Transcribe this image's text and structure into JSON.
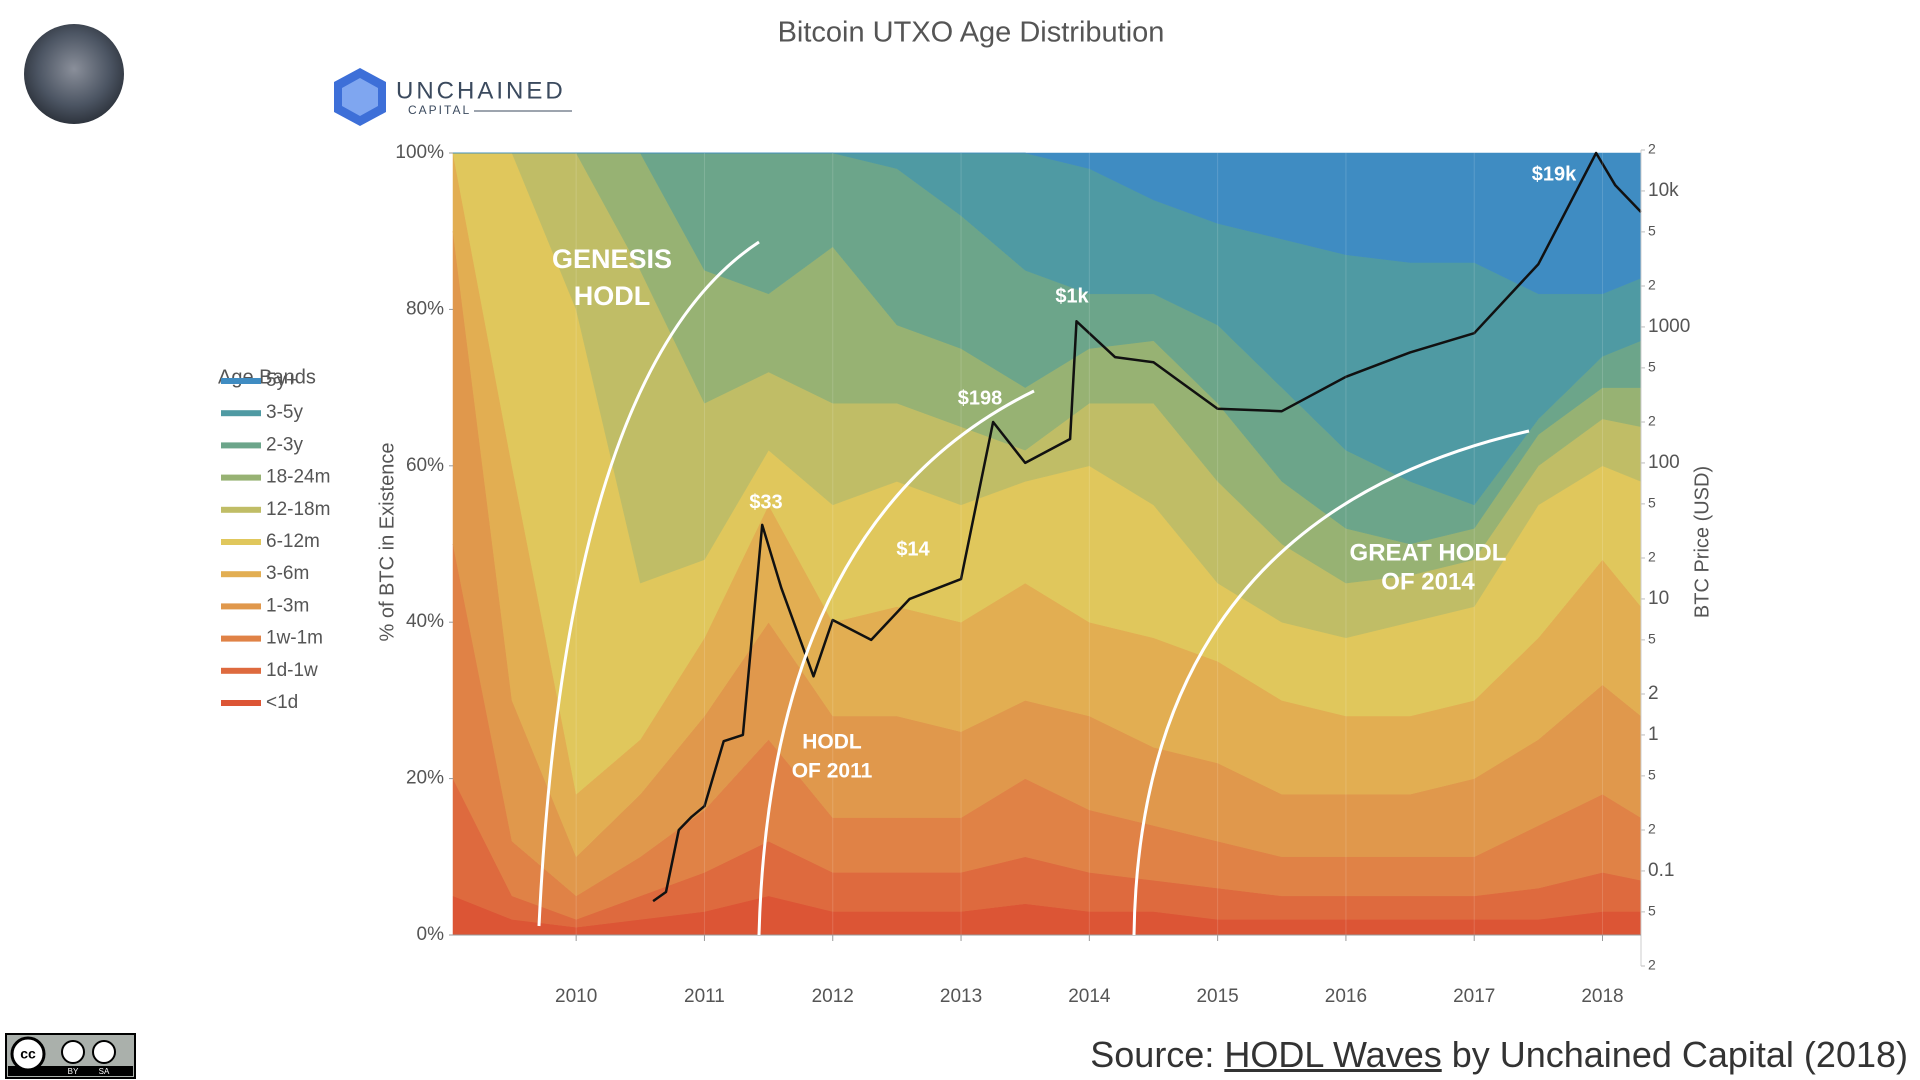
{
  "chart_data": {
    "type": "area",
    "stacked": true,
    "title": "Bitcoin UTXO Age Distribution",
    "ylabel": "% of BTC in Existence",
    "y2label": "BTC Price (USD)",
    "legend_title": "Age Bands",
    "legend": "left",
    "x": [
      2009.04,
      2009.5,
      2010,
      2010.5,
      2011,
      2011.5,
      2012,
      2012.5,
      2013,
      2013.5,
      2014,
      2014.5,
      2015,
      2015.5,
      2016,
      2016.5,
      2017,
      2017.5,
      2018,
      2018.3
    ],
    "xlim": [
      2009.04,
      2018.3
    ],
    "xticks": [
      2010,
      2011,
      2012,
      2013,
      2014,
      2015,
      2016,
      2017,
      2018
    ],
    "ylim": [
      0,
      100
    ],
    "yticks": [
      {
        "value": 0,
        "label": "0%"
      },
      {
        "value": 20,
        "label": "20%"
      },
      {
        "value": 40,
        "label": "40%"
      },
      {
        "value": 60,
        "label": "60%"
      },
      {
        "value": 80,
        "label": "80%"
      },
      {
        "value": 100,
        "label": "100%"
      }
    ],
    "y2lim": [
      0.02,
      20000
    ],
    "y2log": true,
    "y2ticks": [
      {
        "value": 20000,
        "label": "2"
      },
      {
        "value": 10000,
        "label": "10k"
      },
      {
        "value": 5000,
        "label": "5"
      },
      {
        "value": 2000,
        "label": "2"
      },
      1000,
      {
        "value": 500,
        "label": "5"
      },
      {
        "value": 200,
        "label": "2"
      },
      100,
      {
        "value": 50,
        "label": "5"
      },
      {
        "value": 20,
        "label": "2"
      },
      10,
      {
        "value": 5,
        "label": "5"
      },
      2,
      1,
      {
        "value": 0.5,
        "label": "5"
      },
      {
        "value": 0.2,
        "label": "2"
      },
      0.1,
      {
        "value": 0.05,
        "label": "5"
      },
      {
        "value": 0.02,
        "label": "2"
      }
    ],
    "series": [
      {
        "name": "<1d",
        "color": "#dc5535",
        "values": [
          5,
          2,
          1,
          2,
          3,
          5,
          3,
          3,
          3,
          4,
          3,
          3,
          2,
          2,
          2,
          2,
          2,
          2,
          3,
          3
        ]
      },
      {
        "name": "1d-1w",
        "color": "#de6a3e",
        "values": [
          15,
          3,
          1,
          3,
          5,
          7,
          5,
          5,
          5,
          6,
          5,
          4,
          4,
          3,
          3,
          3,
          3,
          4,
          5,
          4
        ]
      },
      {
        "name": "1w-1m",
        "color": "#e08246",
        "values": [
          30,
          7,
          3,
          5,
          8,
          13,
          7,
          7,
          7,
          10,
          8,
          7,
          6,
          5,
          5,
          5,
          5,
          8,
          10,
          8
        ]
      },
      {
        "name": "1-3m",
        "color": "#e0984c",
        "values": [
          40,
          18,
          5,
          8,
          12,
          15,
          13,
          13,
          11,
          10,
          12,
          10,
          10,
          8,
          8,
          8,
          10,
          11,
          14,
          13
        ]
      },
      {
        "name": "3-6m",
        "color": "#e2ae52",
        "values": [
          10,
          30,
          8,
          7,
          10,
          15,
          12,
          14,
          14,
          15,
          12,
          14,
          13,
          12,
          10,
          10,
          10,
          13,
          16,
          14
        ]
      },
      {
        "name": "6-12m",
        "color": "#e0c75c",
        "values": [
          0,
          40,
          62,
          20,
          10,
          7,
          15,
          16,
          15,
          13,
          20,
          17,
          10,
          10,
          10,
          12,
          12,
          17,
          12,
          16
        ]
      },
      {
        "name": "12-18m",
        "color": "#c0bd66",
        "values": [
          0,
          0,
          20,
          40,
          20,
          10,
          13,
          10,
          10,
          4,
          8,
          13,
          13,
          10,
          7,
          6,
          6,
          5,
          6,
          7
        ]
      },
      {
        "name": "18-24m",
        "color": "#97b273",
        "values": [
          0,
          0,
          0,
          15,
          17,
          10,
          20,
          10,
          10,
          8,
          7,
          8,
          10,
          8,
          7,
          4,
          4,
          4,
          4,
          5
        ]
      },
      {
        "name": "2-3y",
        "color": "#6ca58a",
        "values": [
          0,
          0,
          0,
          0,
          15,
          18,
          12,
          20,
          17,
          15,
          7,
          6,
          10,
          12,
          10,
          8,
          3,
          2,
          4,
          6
        ]
      },
      {
        "name": "3-5y",
        "color": "#4f9aa3",
        "values": [
          0,
          0,
          0,
          0,
          0,
          0,
          0,
          2,
          8,
          15,
          16,
          12,
          13,
          19,
          25,
          28,
          31,
          16,
          8,
          8
        ]
      },
      {
        "name": "5y+",
        "color": "#3f8cc2",
        "values": [
          0,
          0,
          0,
          0,
          0,
          0,
          0,
          0,
          0,
          0,
          2,
          6,
          9,
          11,
          13,
          14,
          14,
          18,
          18,
          16
        ]
      }
    ],
    "price": {
      "axis": "y2",
      "color": "#111111",
      "x": [
        2010.6,
        2010.7,
        2010.8,
        2010.9,
        2011.0,
        2011.15,
        2011.3,
        2011.45,
        2011.6,
        2011.85,
        2012.0,
        2012.3,
        2012.6,
        2013.0,
        2013.25,
        2013.5,
        2013.85,
        2013.9,
        2014.2,
        2014.5,
        2015.0,
        2015.5,
        2016.0,
        2016.5,
        2017.0,
        2017.5,
        2017.95,
        2018.1,
        2018.3
      ],
      "values": [
        0.06,
        0.07,
        0.2,
        0.25,
        0.3,
        0.9,
        1.0,
        35,
        12,
        2.7,
        7,
        5,
        10,
        14,
        200,
        100,
        150,
        1100,
        600,
        550,
        250,
        240,
        430,
        650,
        900,
        2900,
        19000,
        11000,
        7000
      ]
    },
    "price_labels": [
      "$33",
      "$14",
      "$198",
      "$1k",
      "$19k"
    ],
    "annotations": [
      [
        "GENESIS",
        "HODL"
      ],
      [
        "HODL",
        "OF 2011"
      ],
      [
        "GREAT HODL",
        "OF 2014"
      ]
    ]
  },
  "logo": {
    "name": "UNCHAINED",
    "sub": "CAPITAL"
  },
  "license": {
    "badge": "cc",
    "terms": [
      "BY",
      "SA"
    ]
  },
  "source": {
    "prefix": "Source: ",
    "link": "HODL Waves",
    "suffix": " by Unchained Capital (2018)"
  }
}
